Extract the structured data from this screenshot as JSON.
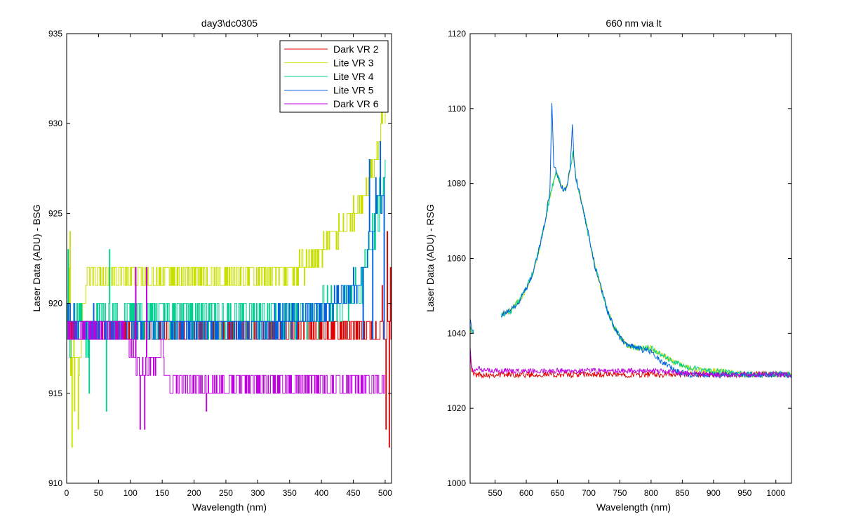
{
  "chart_data": [
    {
      "type": "line",
      "title": "day3\\dc0305",
      "xlabel": "Wavelength (nm)",
      "ylabel": "Laser Data (ADU) - BSG",
      "xlim": [
        0,
        510
      ],
      "ylim": [
        910,
        935
      ],
      "x_ticks": [
        0,
        50,
        100,
        150,
        200,
        250,
        300,
        350,
        400,
        450,
        500
      ],
      "y_ticks": [
        910,
        915,
        920,
        925,
        930,
        935
      ],
      "legend_position": "top-right",
      "series": [
        {
          "name": "Dark VR 2",
          "color": "#e00000",
          "x": [
            0,
            2,
            5,
            10,
            20,
            40,
            60,
            80,
            100,
            120,
            140,
            160,
            200,
            250,
            300,
            350,
            400,
            430,
            460,
            480,
            500,
            505,
            510
          ],
          "y": [
            920,
            918.5,
            918.5,
            918.5,
            918.5,
            918.5,
            918.5,
            918.5,
            918.5,
            918.5,
            918.5,
            918.5,
            918.5,
            918.5,
            918.5,
            918.5,
            918.5,
            918.5,
            918.5,
            918.5,
            918.5,
            919,
            918
          ],
          "noise": 0.6,
          "spikes": [
            [
              495,
              921
            ],
            [
              501,
              913
            ],
            [
              503,
              924
            ],
            [
              506,
              912
            ],
            [
              508,
              922
            ]
          ]
        },
        {
          "name": "Lite VR 3",
          "color": "#c8e000",
          "x": [
            0,
            3,
            6,
            10,
            20,
            30,
            50,
            100,
            150,
            200,
            250,
            300,
            350,
            380,
            400,
            420,
            440,
            460,
            470,
            480,
            490,
            495,
            500
          ],
          "y": [
            919,
            922,
            916,
            918,
            917,
            921.3,
            921.5,
            921.5,
            921.5,
            921.5,
            921.5,
            921.5,
            921.8,
            922.3,
            923.0,
            923.8,
            924.6,
            925.5,
            926.3,
            927.3,
            929,
            930.5,
            931
          ],
          "noise": 0.7,
          "spikes": [
            [
              8,
              912
            ],
            [
              5,
              924
            ],
            [
              12,
              914
            ],
            [
              18,
              913
            ]
          ]
        },
        {
          "name": "Lite VR 4",
          "color": "#00d090",
          "x": [
            0,
            5,
            10,
            20,
            30,
            40,
            50,
            100,
            150,
            200,
            250,
            300,
            350,
            400,
            420,
            440,
            460,
            470,
            480,
            490,
            500
          ],
          "y": [
            920,
            917,
            918.5,
            919.5,
            918,
            919,
            919.2,
            919.3,
            919.3,
            919.2,
            919.2,
            919.2,
            919.3,
            919.6,
            919.9,
            920.3,
            921.0,
            922.0,
            923.5,
            925.5,
            927
          ],
          "noise": 1.2,
          "spikes": [
            [
              2,
              923
            ],
            [
              35,
              915
            ],
            [
              62,
              914
            ],
            [
              67,
              923
            ]
          ]
        },
        {
          "name": "Lite VR 5",
          "color": "#0060e0",
          "x": [
            0,
            50,
            100,
            150,
            200,
            250,
            300,
            350,
            400,
            420,
            440,
            460,
            470,
            480,
            490,
            500
          ],
          "y": [
            919,
            918.8,
            918.8,
            918.8,
            918.8,
            918.8,
            918.8,
            919,
            919.5,
            920,
            920.5,
            921.2,
            922.5,
            924,
            925.5,
            926.5
          ],
          "noise": 0.7,
          "spikes": [
            [
              465,
              918
            ],
            [
              475,
              928
            ],
            [
              480,
              918
            ],
            [
              485,
              927
            ],
            [
              492,
              929
            ],
            [
              498,
              918
            ]
          ]
        },
        {
          "name": "Dark VR 6",
          "color": "#c000e0",
          "x": [
            0,
            50,
            90,
            100,
            110,
            120,
            130,
            140,
            150,
            160,
            200,
            220,
            250,
            300,
            350,
            400,
            450,
            500
          ],
          "y": [
            918.5,
            918.5,
            918.5,
            917.5,
            916.5,
            916,
            916.5,
            917,
            917.5,
            915.5,
            915.5,
            915,
            915.5,
            915.5,
            915.5,
            915.5,
            915.5,
            915.5
          ],
          "noise": 0.6,
          "spikes": [
            [
              115,
              913
            ],
            [
              122,
              913
            ],
            [
              125,
              922
            ],
            [
              108,
              922
            ]
          ]
        }
      ]
    },
    {
      "type": "line",
      "title": "660 nm via lt",
      "xlabel": "Wavelength (nm)",
      "ylabel": "Laser Data (ADU) - RSG",
      "xlim": [
        510,
        1025
      ],
      "ylim": [
        1000,
        1120
      ],
      "x_ticks": [
        550,
        600,
        650,
        700,
        750,
        800,
        850,
        900,
        950,
        1000
      ],
      "y_ticks": [
        1000,
        1020,
        1040,
        1060,
        1080,
        1100,
        1120
      ],
      "series": [
        {
          "color": "#e00000",
          "x": [
            510,
            512,
            515,
            520,
            530,
            600,
            700,
            800,
            900,
            1000,
            1025
          ],
          "y": [
            1036,
            1031,
            1029,
            1029,
            1029,
            1029,
            1029,
            1029,
            1029,
            1029,
            1029
          ],
          "noise": 0.8
        },
        {
          "color": "#c8e000",
          "x": [
            560,
            575,
            590,
            600,
            610,
            620,
            630,
            640,
            648,
            655,
            660,
            665,
            670,
            675,
            680,
            690,
            700,
            710,
            720,
            730,
            740,
            750,
            760,
            780,
            800,
            820,
            840,
            860,
            880,
            900,
            950,
            1000,
            1025
          ],
          "y": [
            1045,
            1046,
            1049,
            1052,
            1056,
            1062,
            1070,
            1078,
            1083,
            1080,
            1078,
            1079,
            1084,
            1088,
            1081,
            1074,
            1066,
            1058,
            1052,
            1046,
            1042,
            1039,
            1037,
            1036,
            1036,
            1034,
            1032,
            1031,
            1030,
            1030,
            1029,
            1029,
            1029
          ],
          "noise": 0.8,
          "start_segment": [
            [
              510,
              1041
            ],
            [
              513,
              1040
            ],
            [
              516,
              1041
            ]
          ]
        },
        {
          "color": "#00d090",
          "x": [
            560,
            575,
            590,
            600,
            610,
            620,
            630,
            640,
            648,
            655,
            660,
            665,
            670,
            675,
            680,
            690,
            700,
            710,
            720,
            730,
            740,
            750,
            760,
            780,
            800,
            820,
            840,
            860,
            880,
            900,
            950,
            1000,
            1025
          ],
          "y": [
            1045,
            1046,
            1049,
            1052,
            1056,
            1062,
            1070,
            1078,
            1083,
            1080,
            1078,
            1079,
            1084,
            1088,
            1081,
            1074,
            1066,
            1058,
            1052,
            1046,
            1042,
            1039,
            1037,
            1036,
            1036,
            1034,
            1032,
            1031,
            1030,
            1030,
            1029,
            1029,
            1029
          ],
          "noise": 0.8,
          "start_segment": [
            [
              510,
              1042
            ],
            [
              513,
              1040
            ],
            [
              516,
              1041
            ]
          ]
        },
        {
          "color": "#0060e0",
          "x": [
            560,
            575,
            590,
            600,
            610,
            620,
            630,
            638,
            641,
            644,
            648,
            655,
            660,
            665,
            670,
            674,
            677,
            680,
            690,
            700,
            710,
            720,
            730,
            740,
            750,
            760,
            780,
            800,
            820,
            840,
            860,
            880,
            900,
            950,
            1000,
            1025
          ],
          "y": [
            1045,
            1046,
            1049,
            1052,
            1056,
            1062,
            1070,
            1078,
            1102,
            1085,
            1083,
            1080,
            1078,
            1079,
            1084,
            1096,
            1085,
            1081,
            1074,
            1066,
            1058,
            1052,
            1046,
            1042,
            1039,
            1037,
            1036,
            1035,
            1032,
            1030,
            1029,
            1029,
            1029,
            1029,
            1029,
            1029
          ],
          "noise": 0.8,
          "start_segment": [
            [
              510,
              1044
            ],
            [
              513,
              1041
            ],
            [
              516,
              1040
            ]
          ]
        },
        {
          "color": "#c000e0",
          "x": [
            510,
            512,
            515,
            520,
            530,
            600,
            700,
            800,
            900,
            1000,
            1025
          ],
          "y": [
            1037,
            1031,
            1030,
            1031,
            1030,
            1030,
            1030,
            1030,
            1029,
            1029,
            1029
          ],
          "noise": 0.7
        }
      ]
    }
  ]
}
